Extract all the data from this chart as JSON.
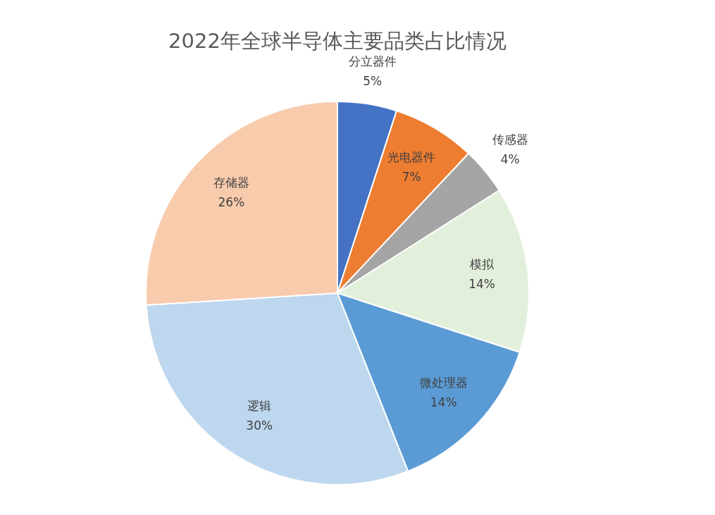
{
  "chart_data": {
    "type": "pie",
    "title": "2022年全球半导体主要品类占比情况",
    "categories": [
      "分立器件",
      "光电器件",
      "传感器",
      "模拟",
      "微处理器",
      "逻辑",
      "存储器"
    ],
    "values": [
      5,
      7,
      4,
      14,
      14,
      30,
      26
    ],
    "value_labels": [
      "5%",
      "7%",
      "4%",
      "14%",
      "14%",
      "30%",
      "26%"
    ],
    "colors": [
      "#4472c4",
      "#ed7d31",
      "#a5a5a5",
      "#e2efda",
      "#5b9bd5",
      "#bdd7ee",
      "#f8cbad"
    ]
  }
}
